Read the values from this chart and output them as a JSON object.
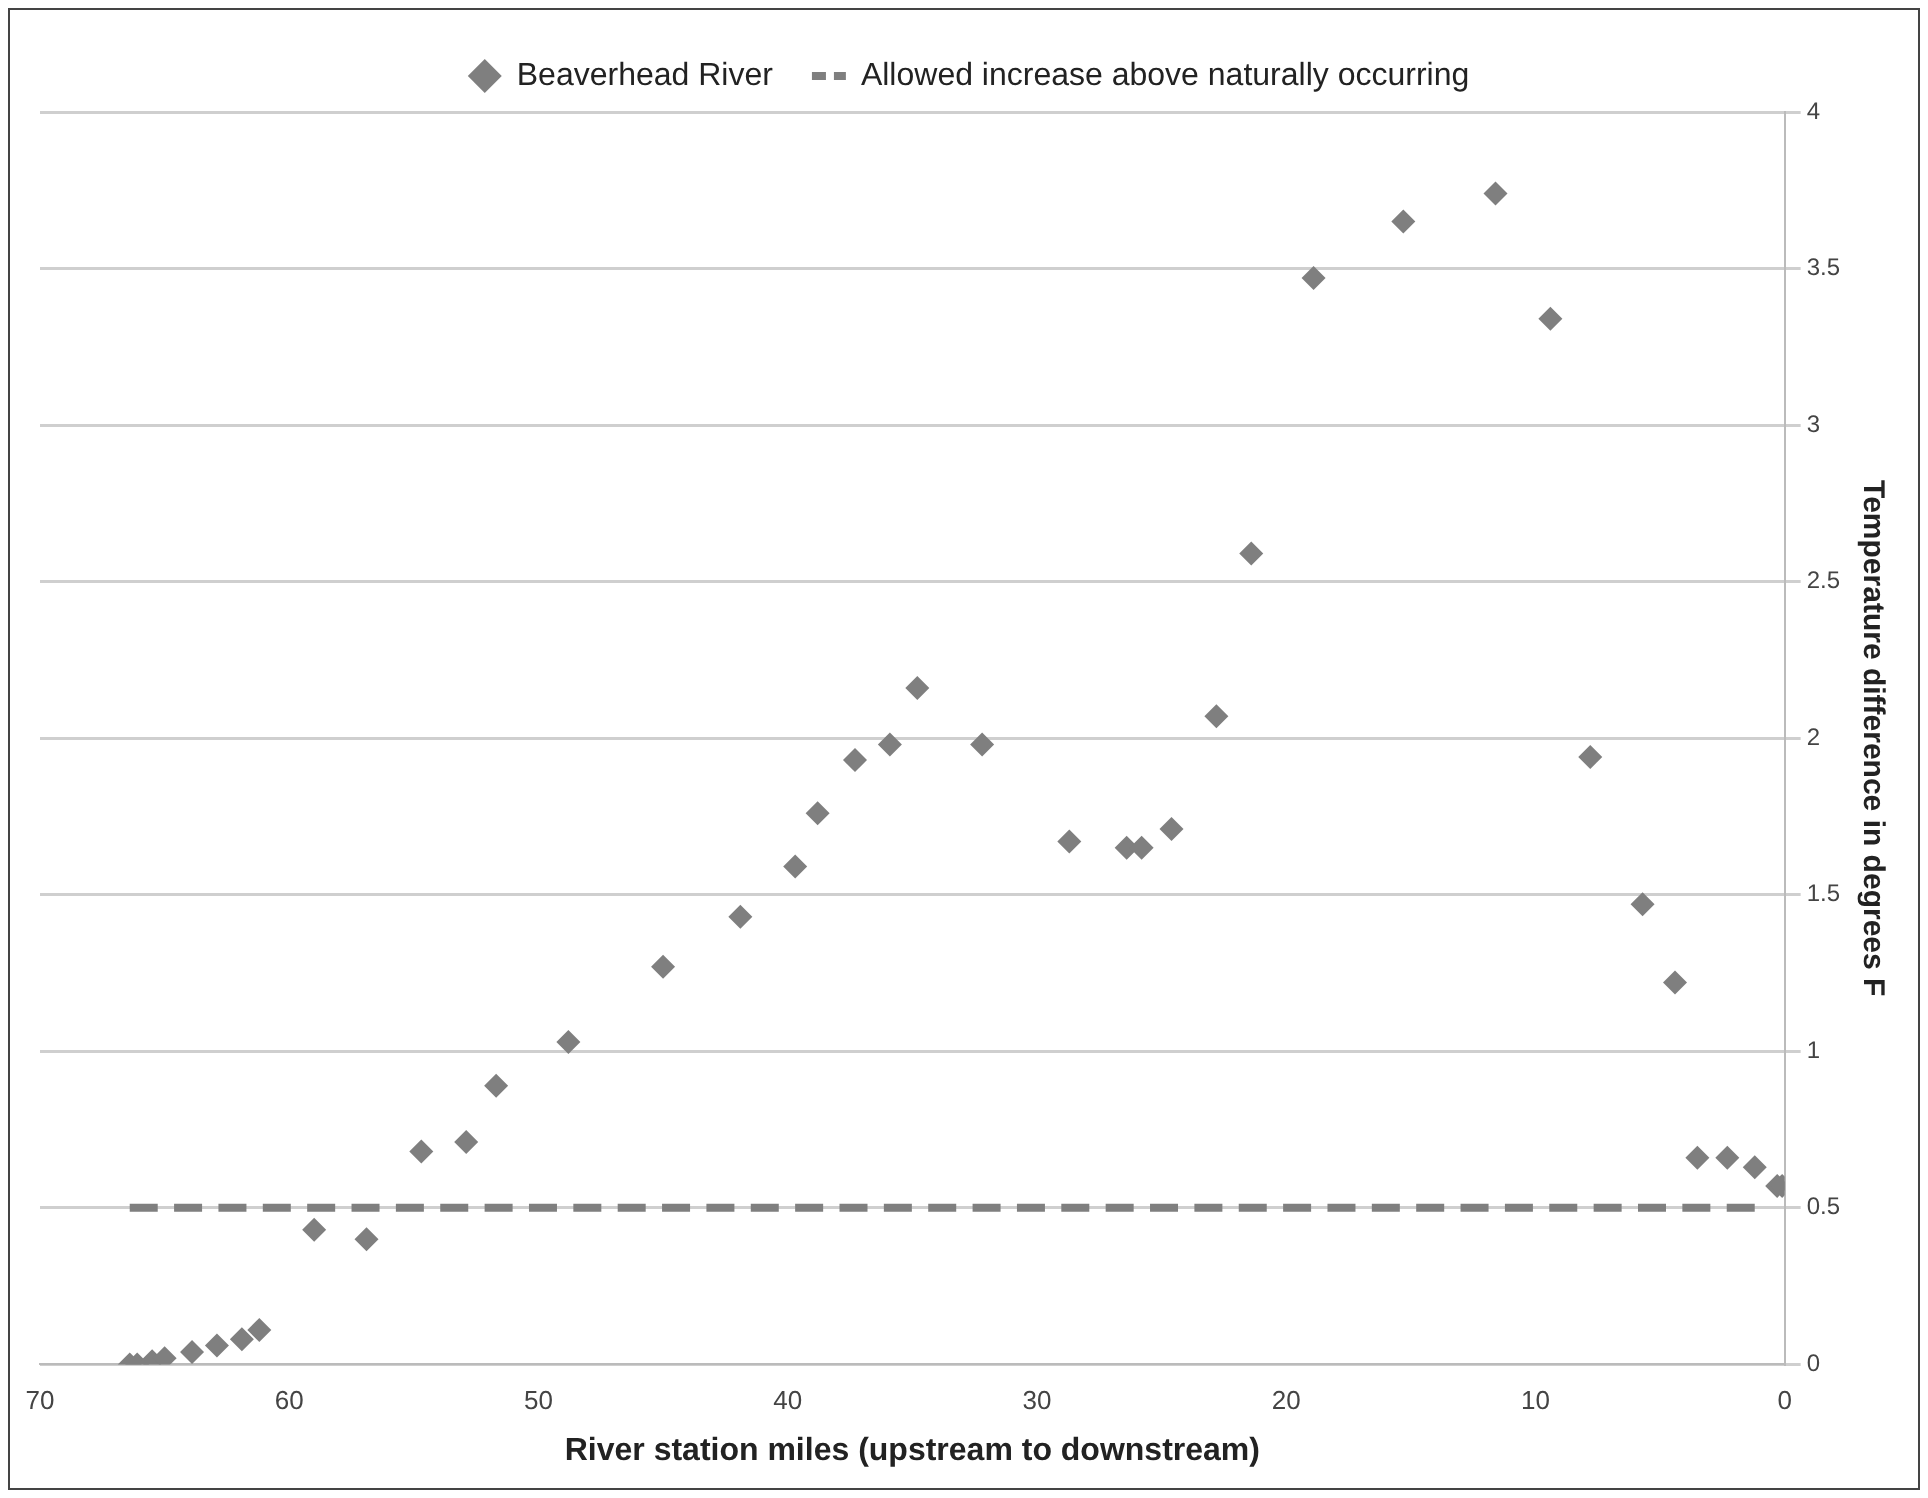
{
  "chart_data": {
    "type": "scatter",
    "xlabel": "River station miles (upstream to downstream)",
    "ylabel": "Temperature difference in degrees F",
    "xlim": [
      70,
      0
    ],
    "xticks": [
      70,
      60,
      50,
      40,
      30,
      20,
      10,
      0
    ],
    "ylim": [
      0,
      4
    ],
    "yticks": [
      0,
      0.5,
      1,
      1.5,
      2,
      2.5,
      3,
      3.5,
      4
    ],
    "grid": "y",
    "legend": "top",
    "marker": "diamond",
    "series": [
      {
        "name": "Beaverhead River",
        "color": "#7f7f7f",
        "type": "scatter",
        "x": [
          66.4,
          66.1,
          65.5,
          65.0,
          63.9,
          62.9,
          61.9,
          61.2,
          59.0,
          56.9,
          54.7,
          52.9,
          51.7,
          48.8,
          45.0,
          41.9,
          39.7,
          38.8,
          37.3,
          35.9,
          34.8,
          32.2,
          28.7,
          26.4,
          25.8,
          24.6,
          22.8,
          21.4,
          18.9,
          15.3,
          11.6,
          9.4,
          7.8,
          5.7,
          4.4,
          3.5,
          2.3,
          1.2,
          0.3,
          0.1
        ],
        "values": [
          0,
          0,
          0.01,
          0.02,
          0.04,
          0.06,
          0.08,
          0.11,
          0.43,
          0.4,
          0.68,
          0.71,
          0.89,
          1.03,
          1.27,
          1.43,
          1.59,
          1.76,
          1.93,
          1.98,
          2.16,
          1.98,
          1.67,
          1.65,
          1.65,
          1.71,
          2.07,
          2.59,
          3.47,
          3.65,
          3.74,
          3.34,
          1.94,
          1.47,
          1.22,
          0.66,
          0.66,
          0.63,
          0.57,
          0.57
        ]
      },
      {
        "name": "Allowed increase above naturally occurring",
        "color": "#7f7f7f",
        "type": "line",
        "line_style": "dashed",
        "marker": "none",
        "x": [
          66.4,
          1.2
        ],
        "values": [
          0.5,
          0.5
        ]
      }
    ]
  }
}
